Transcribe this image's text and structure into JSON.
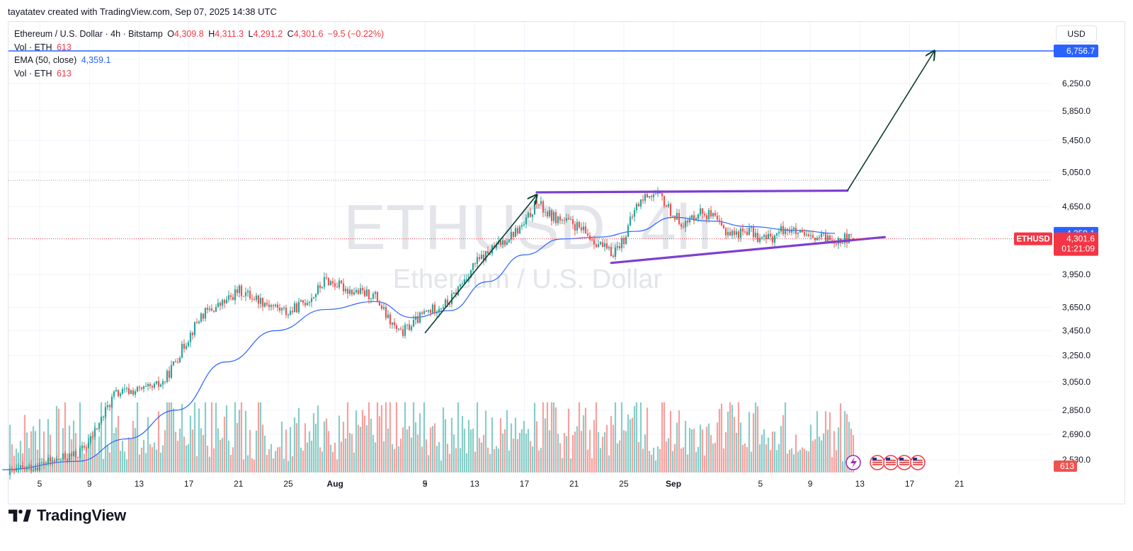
{
  "header": {
    "caption": "tayatatev created with TradingView.com, Sep 07, 2025 14:38 UTC"
  },
  "legend": {
    "symbol": "Ethereum / U.S. Dollar · 4h · Bitstamp",
    "o_label": "O",
    "o_value": "4,309.8",
    "h_label": "H",
    "h_value": "4,311.3",
    "l_label": "L",
    "l_value": "4,291.2",
    "c_label": "C",
    "c_value": "4,301.6",
    "change": "−9.5 (−0.22%)",
    "vol_label": "Vol · ETH",
    "vol_value": "613",
    "ema_label": "EMA (50, close)",
    "ema_value": "4,359.1",
    "vol2_label": "Vol · ETH",
    "vol2_value": "613"
  },
  "watermark": {
    "ticker": "ETHUSD, 4h",
    "name": "Ethereum / U.S. Dollar"
  },
  "price_scale": {
    "currency": "USD",
    "ticks": [
      "6,250.0",
      "5,850.0",
      "5,450.0",
      "5,050.0",
      "4,650.0",
      "3,950.0",
      "3,650.0",
      "3,450.0",
      "3,250.0",
      "3,050.0",
      "2,850.0",
      "2,690.0",
      "2,530.0"
    ],
    "target_label": "6,756.7",
    "ema_label": "4,359.1",
    "price_label": "4,301.6",
    "countdown": "01:21:09",
    "symbol_tag": "ETHUSD",
    "volume_label": "613"
  },
  "time_scale": {
    "labels": [
      "5",
      "9",
      "13",
      "17",
      "21",
      "25",
      "Aug",
      "5",
      "9",
      "13",
      "17",
      "21",
      "25",
      "Sep",
      "5",
      "9",
      "13",
      "17",
      "21"
    ]
  },
  "colors": {
    "up": "#26a69a",
    "down": "#ef5350",
    "ema": "#2962ff",
    "target_line": "#2962ff",
    "pattern_line": "#7e3fd0",
    "arrow": "#0b3d2e",
    "price_line": "#f23645"
  },
  "footer": {
    "brand": "TradingView"
  },
  "chart_data": {
    "type": "candlestick",
    "title": "Ethereum / U.S. Dollar · 4h · Bitstamp",
    "price_scale": "log",
    "ylim": [
      2480,
      6950
    ],
    "x_range": [
      "2025-07-02",
      "2025-09-23"
    ],
    "candle_anchors": [
      [
        "2025-07-02",
        2440
      ],
      [
        "2025-07-05",
        2500
      ],
      [
        "2025-07-08",
        2560
      ],
      [
        "2025-07-09",
        2640
      ],
      [
        "2025-07-11",
        2960
      ],
      [
        "2025-07-12",
        2980
      ],
      [
        "2025-07-14",
        3000
      ],
      [
        "2025-07-15",
        3050
      ],
      [
        "2025-07-17",
        3400
      ],
      [
        "2025-07-18",
        3580
      ],
      [
        "2025-07-20",
        3700
      ],
      [
        "2025-07-21",
        3800
      ],
      [
        "2025-07-23",
        3700
      ],
      [
        "2025-07-25",
        3600
      ],
      [
        "2025-07-27",
        3750
      ],
      [
        "2025-07-28",
        3900
      ],
      [
        "2025-07-30",
        3800
      ],
      [
        "2025-08-01",
        3750
      ],
      [
        "2025-08-02",
        3550
      ],
      [
        "2025-08-03",
        3420
      ],
      [
        "2025-08-05",
        3600
      ],
      [
        "2025-08-07",
        3700
      ],
      [
        "2025-08-09",
        4050
      ],
      [
        "2025-08-11",
        4250
      ],
      [
        "2025-08-13",
        4450
      ],
      [
        "2025-08-14",
        4700
      ],
      [
        "2025-08-15",
        4550
      ],
      [
        "2025-08-17",
        4450
      ],
      [
        "2025-08-18",
        4350
      ],
      [
        "2025-08-19",
        4250
      ],
      [
        "2025-08-20",
        4150
      ],
      [
        "2025-08-21",
        4300
      ],
      [
        "2025-08-22",
        4650
      ],
      [
        "2025-08-23",
        4800
      ],
      [
        "2025-08-24",
        4750
      ],
      [
        "2025-08-25",
        4550
      ],
      [
        "2025-08-26",
        4450
      ],
      [
        "2025-08-27",
        4600
      ],
      [
        "2025-08-28",
        4550
      ],
      [
        "2025-08-29",
        4400
      ],
      [
        "2025-08-30",
        4350
      ],
      [
        "2025-08-31",
        4400
      ],
      [
        "2025-09-01",
        4300
      ],
      [
        "2025-09-02",
        4320
      ],
      [
        "2025-09-03",
        4420
      ],
      [
        "2025-09-04",
        4350
      ],
      [
        "2025-09-05",
        4300
      ],
      [
        "2025-09-06",
        4310
      ],
      [
        "2025-09-07",
        4301.6
      ]
    ],
    "ema50_anchors": [
      [
        "2025-07-02",
        2470
      ],
      [
        "2025-07-08",
        2520
      ],
      [
        "2025-07-12",
        2660
      ],
      [
        "2025-07-16",
        2850
      ],
      [
        "2025-07-20",
        3200
      ],
      [
        "2025-07-24",
        3450
      ],
      [
        "2025-07-28",
        3630
      ],
      [
        "2025-08-01",
        3700
      ],
      [
        "2025-08-04",
        3560
      ],
      [
        "2025-08-07",
        3620
      ],
      [
        "2025-08-10",
        3880
      ],
      [
        "2025-08-13",
        4140
      ],
      [
        "2025-08-16",
        4300
      ],
      [
        "2025-08-19",
        4320
      ],
      [
        "2025-08-22",
        4380
      ],
      [
        "2025-08-25",
        4530
      ],
      [
        "2025-08-28",
        4490
      ],
      [
        "2025-08-31",
        4430
      ],
      [
        "2025-09-04",
        4390
      ],
      [
        "2025-09-07",
        4359.1
      ]
    ],
    "last_candle": {
      "open": 4309.8,
      "high": 4311.3,
      "low": 4291.2,
      "close": 4301.6,
      "change": -9.5,
      "change_pct": -0.22
    },
    "ema50_last": 4359.1,
    "volume_last": 613,
    "drawings": [
      {
        "type": "horizontal_line",
        "name": "target",
        "price": 6756.7
      },
      {
        "type": "trendline",
        "name": "resistance",
        "from": [
          "2025-08-14",
          4810
        ],
        "to": [
          "2025-09-08",
          4830
        ]
      },
      {
        "type": "trendline",
        "name": "support",
        "from": [
          "2025-08-20",
          4060
        ],
        "to": [
          "2025-09-11",
          4320
        ]
      },
      {
        "type": "arrow",
        "name": "impulse",
        "from": [
          "2025-08-05",
          3430
        ],
        "to": [
          "2025-08-14",
          4780
        ]
      },
      {
        "type": "arrow",
        "name": "projection",
        "from": [
          "2025-09-08",
          4830
        ],
        "to": [
          "2025-09-15",
          6756.7
        ]
      }
    ]
  }
}
